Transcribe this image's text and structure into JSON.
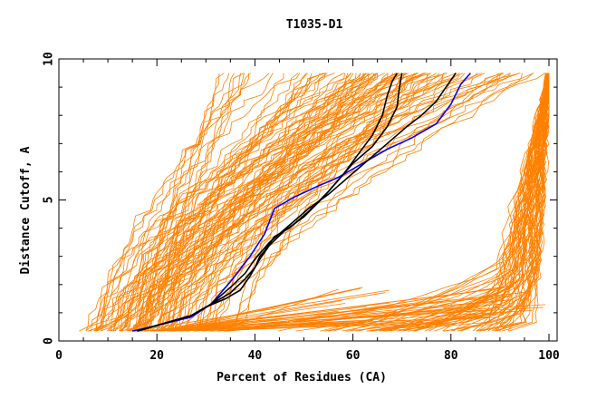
{
  "chart_data": {
    "type": "line",
    "title": "T1035-D1",
    "xlabel": "Percent of Residues (CA)",
    "ylabel": "Distance Cutoff, A",
    "xlim": [
      0,
      100
    ],
    "ylim": [
      0,
      10
    ],
    "xticks": [
      "0",
      "20",
      "40",
      "60",
      "80",
      "100"
    ],
    "yticks": [
      "0",
      "5",
      "10"
    ],
    "grid": false,
    "colors": {
      "background_curves": "#ff8000",
      "highlight_black": "#000000",
      "highlight_blue": "#0000ff"
    },
    "series": [
      {
        "color": "#0000ff",
        "x": [
          15,
          20,
          27,
          31,
          35,
          39,
          42,
          44,
          48,
          53,
          57,
          62,
          67,
          72,
          77,
          80,
          82,
          84
        ],
        "y": [
          0.35,
          0.55,
          0.85,
          1.3,
          2.1,
          3.0,
          3.8,
          4.7,
          5.1,
          5.5,
          5.8,
          6.3,
          6.8,
          7.2,
          7.7,
          8.4,
          9.1,
          9.5
        ]
      },
      {
        "color": "#000000",
        "x": [
          16,
          21,
          27,
          31,
          35,
          38,
          40,
          41,
          42,
          44,
          47,
          51,
          55,
          58,
          61,
          64,
          66,
          67,
          68,
          69
        ],
        "y": [
          0.35,
          0.6,
          0.9,
          1.3,
          1.7,
          2.2,
          2.6,
          3.0,
          3.2,
          3.7,
          4.0,
          4.6,
          5.3,
          5.9,
          6.6,
          7.3,
          8.0,
          8.7,
          9.2,
          9.5
        ]
      },
      {
        "color": "#000000",
        "x": [
          16,
          21,
          27,
          30,
          34,
          37,
          39,
          41,
          43,
          46,
          50,
          54,
          57,
          60,
          64,
          67,
          69,
          69.5,
          70
        ],
        "y": [
          0.35,
          0.6,
          0.9,
          1.2,
          1.5,
          1.8,
          2.3,
          2.9,
          3.4,
          3.9,
          4.4,
          5.1,
          5.7,
          6.3,
          6.9,
          7.6,
          8.3,
          9.0,
          9.5
        ]
      },
      {
        "color": "#000000",
        "x": [
          16,
          21,
          27,
          31,
          35,
          38,
          40,
          43,
          47,
          51,
          55,
          59,
          63,
          67,
          71,
          74,
          77,
          79,
          81
        ],
        "y": [
          0.35,
          0.6,
          0.9,
          1.3,
          1.9,
          2.4,
          2.9,
          3.5,
          4.1,
          4.7,
          5.2,
          5.8,
          6.4,
          7.0,
          7.6,
          8.0,
          8.5,
          9.0,
          9.5
        ]
      }
    ]
  }
}
